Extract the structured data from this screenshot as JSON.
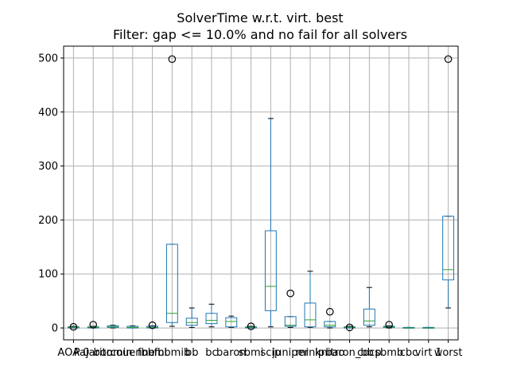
{
  "chart_data": {
    "type": "boxplot",
    "title": "SolverTime w.r.t. virt. best",
    "subtitle": "Filter: gap <= 10.0% and no fail for all solvers",
    "ylim": [
      -22,
      522
    ],
    "yticks": [
      0,
      100,
      200,
      300,
      400,
      500
    ],
    "grid": true,
    "colors": {
      "box": "#1f77b4",
      "median": "#2ca02c",
      "whisker": "#000000",
      "flier": "#000000",
      "grid": "#b0b0b0"
    },
    "categories": [
      "AOA 0",
      "Pajarito",
      "bonmin",
      "couenne",
      "fbbmi",
      "fbbmib",
      "bb",
      "bc",
      "baron",
      "sbmi",
      "scip",
      "juniper",
      "minlp",
      "knitro",
      "baron_bb",
      "cocp",
      "sbmb",
      "cbc",
      "virt 1",
      "worst"
    ],
    "boxes": [
      {
        "q1": 0,
        "median": 1,
        "q3": 2,
        "whislo": 0,
        "whishi": 3,
        "fliers": [
          2
        ]
      },
      {
        "q1": 0,
        "median": 1,
        "q3": 2,
        "whislo": 0,
        "whishi": 3,
        "fliers": [
          6
        ]
      },
      {
        "q1": 1,
        "median": 2,
        "q3": 4,
        "whislo": 0,
        "whishi": 5,
        "fliers": []
      },
      {
        "q1": 0,
        "median": 1,
        "q3": 3,
        "whislo": 0,
        "whishi": 4,
        "fliers": []
      },
      {
        "q1": 0,
        "median": 1,
        "q3": 3,
        "whislo": 0,
        "whishi": 4,
        "fliers": [
          5
        ]
      },
      {
        "q1": 10,
        "median": 27,
        "q3": 155,
        "whislo": 3,
        "whishi": 155,
        "fliers": [
          498
        ]
      },
      {
        "q1": 5,
        "median": 10,
        "q3": 18,
        "whislo": 1,
        "whishi": 37,
        "fliers": []
      },
      {
        "q1": 8,
        "median": 14,
        "q3": 27,
        "whislo": 2,
        "whishi": 44,
        "fliers": []
      },
      {
        "q1": 2,
        "median": 12,
        "q3": 19,
        "whislo": 1,
        "whishi": 22,
        "fliers": []
      },
      {
        "q1": 0,
        "median": 1,
        "q3": 2,
        "whislo": 0,
        "whishi": 3,
        "fliers": [
          3
        ]
      },
      {
        "q1": 32,
        "median": 77,
        "q3": 180,
        "whislo": 2,
        "whishi": 388,
        "fliers": []
      },
      {
        "q1": 3,
        "median": 5,
        "q3": 21,
        "whislo": 1,
        "whishi": 21,
        "fliers": [
          64
        ]
      },
      {
        "q1": 2,
        "median": 15,
        "q3": 46,
        "whislo": 1,
        "whishi": 105,
        "fliers": []
      },
      {
        "q1": 2,
        "median": 5,
        "q3": 12,
        "whislo": 0,
        "whishi": 12,
        "fliers": [
          30
        ]
      },
      {
        "q1": 0,
        "median": 1,
        "q3": 2,
        "whislo": 0,
        "whishi": 3,
        "fliers": [
          1
        ]
      },
      {
        "q1": 5,
        "median": 13,
        "q3": 35,
        "whislo": 2,
        "whishi": 75,
        "fliers": []
      },
      {
        "q1": 1,
        "median": 2,
        "q3": 3,
        "whislo": 0,
        "whishi": 4,
        "fliers": [
          6
        ]
      },
      {
        "q1": 0,
        "median": 0,
        "q3": 1,
        "whislo": 0,
        "whishi": 1,
        "fliers": []
      },
      {
        "q1": 0,
        "median": 0,
        "q3": 1,
        "whislo": 0,
        "whishi": 1,
        "fliers": []
      },
      {
        "q1": 89,
        "median": 108,
        "q3": 207,
        "whislo": 37,
        "whishi": 207,
        "fliers": [
          498
        ]
      }
    ]
  }
}
